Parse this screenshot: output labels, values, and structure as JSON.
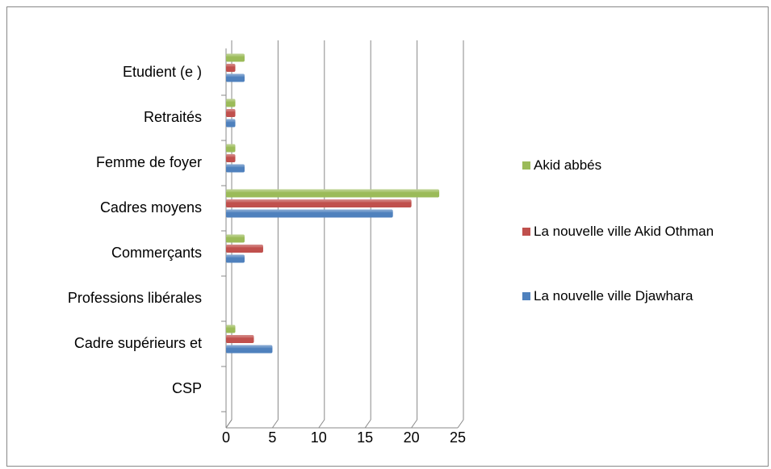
{
  "chart_data": {
    "type": "bar",
    "orientation": "horizontal",
    "categories": [
      "CSP",
      "Cadre supérieurs et",
      "Professions libérales",
      "Commerçants",
      "Cadres moyens",
      "Femme de foyer",
      "Retraités",
      "Etudient (e )"
    ],
    "series": [
      {
        "name": "La nouvelle ville Djawhara",
        "color": "#4f81bd",
        "values": [
          null,
          5,
          null,
          2,
          18,
          2,
          1,
          2
        ]
      },
      {
        "name": "La nouvelle ville Akid Othman",
        "color": "#c0504d",
        "values": [
          null,
          3,
          null,
          4,
          20,
          1,
          1,
          1
        ]
      },
      {
        "name": "Akid abbés",
        "color": "#9bbb59",
        "values": [
          null,
          1,
          null,
          2,
          23,
          1,
          1,
          2
        ]
      }
    ],
    "xlim": [
      0,
      25
    ],
    "xticks": [
      0,
      5,
      10,
      15,
      20,
      25
    ],
    "grid": true,
    "legend": "right"
  }
}
